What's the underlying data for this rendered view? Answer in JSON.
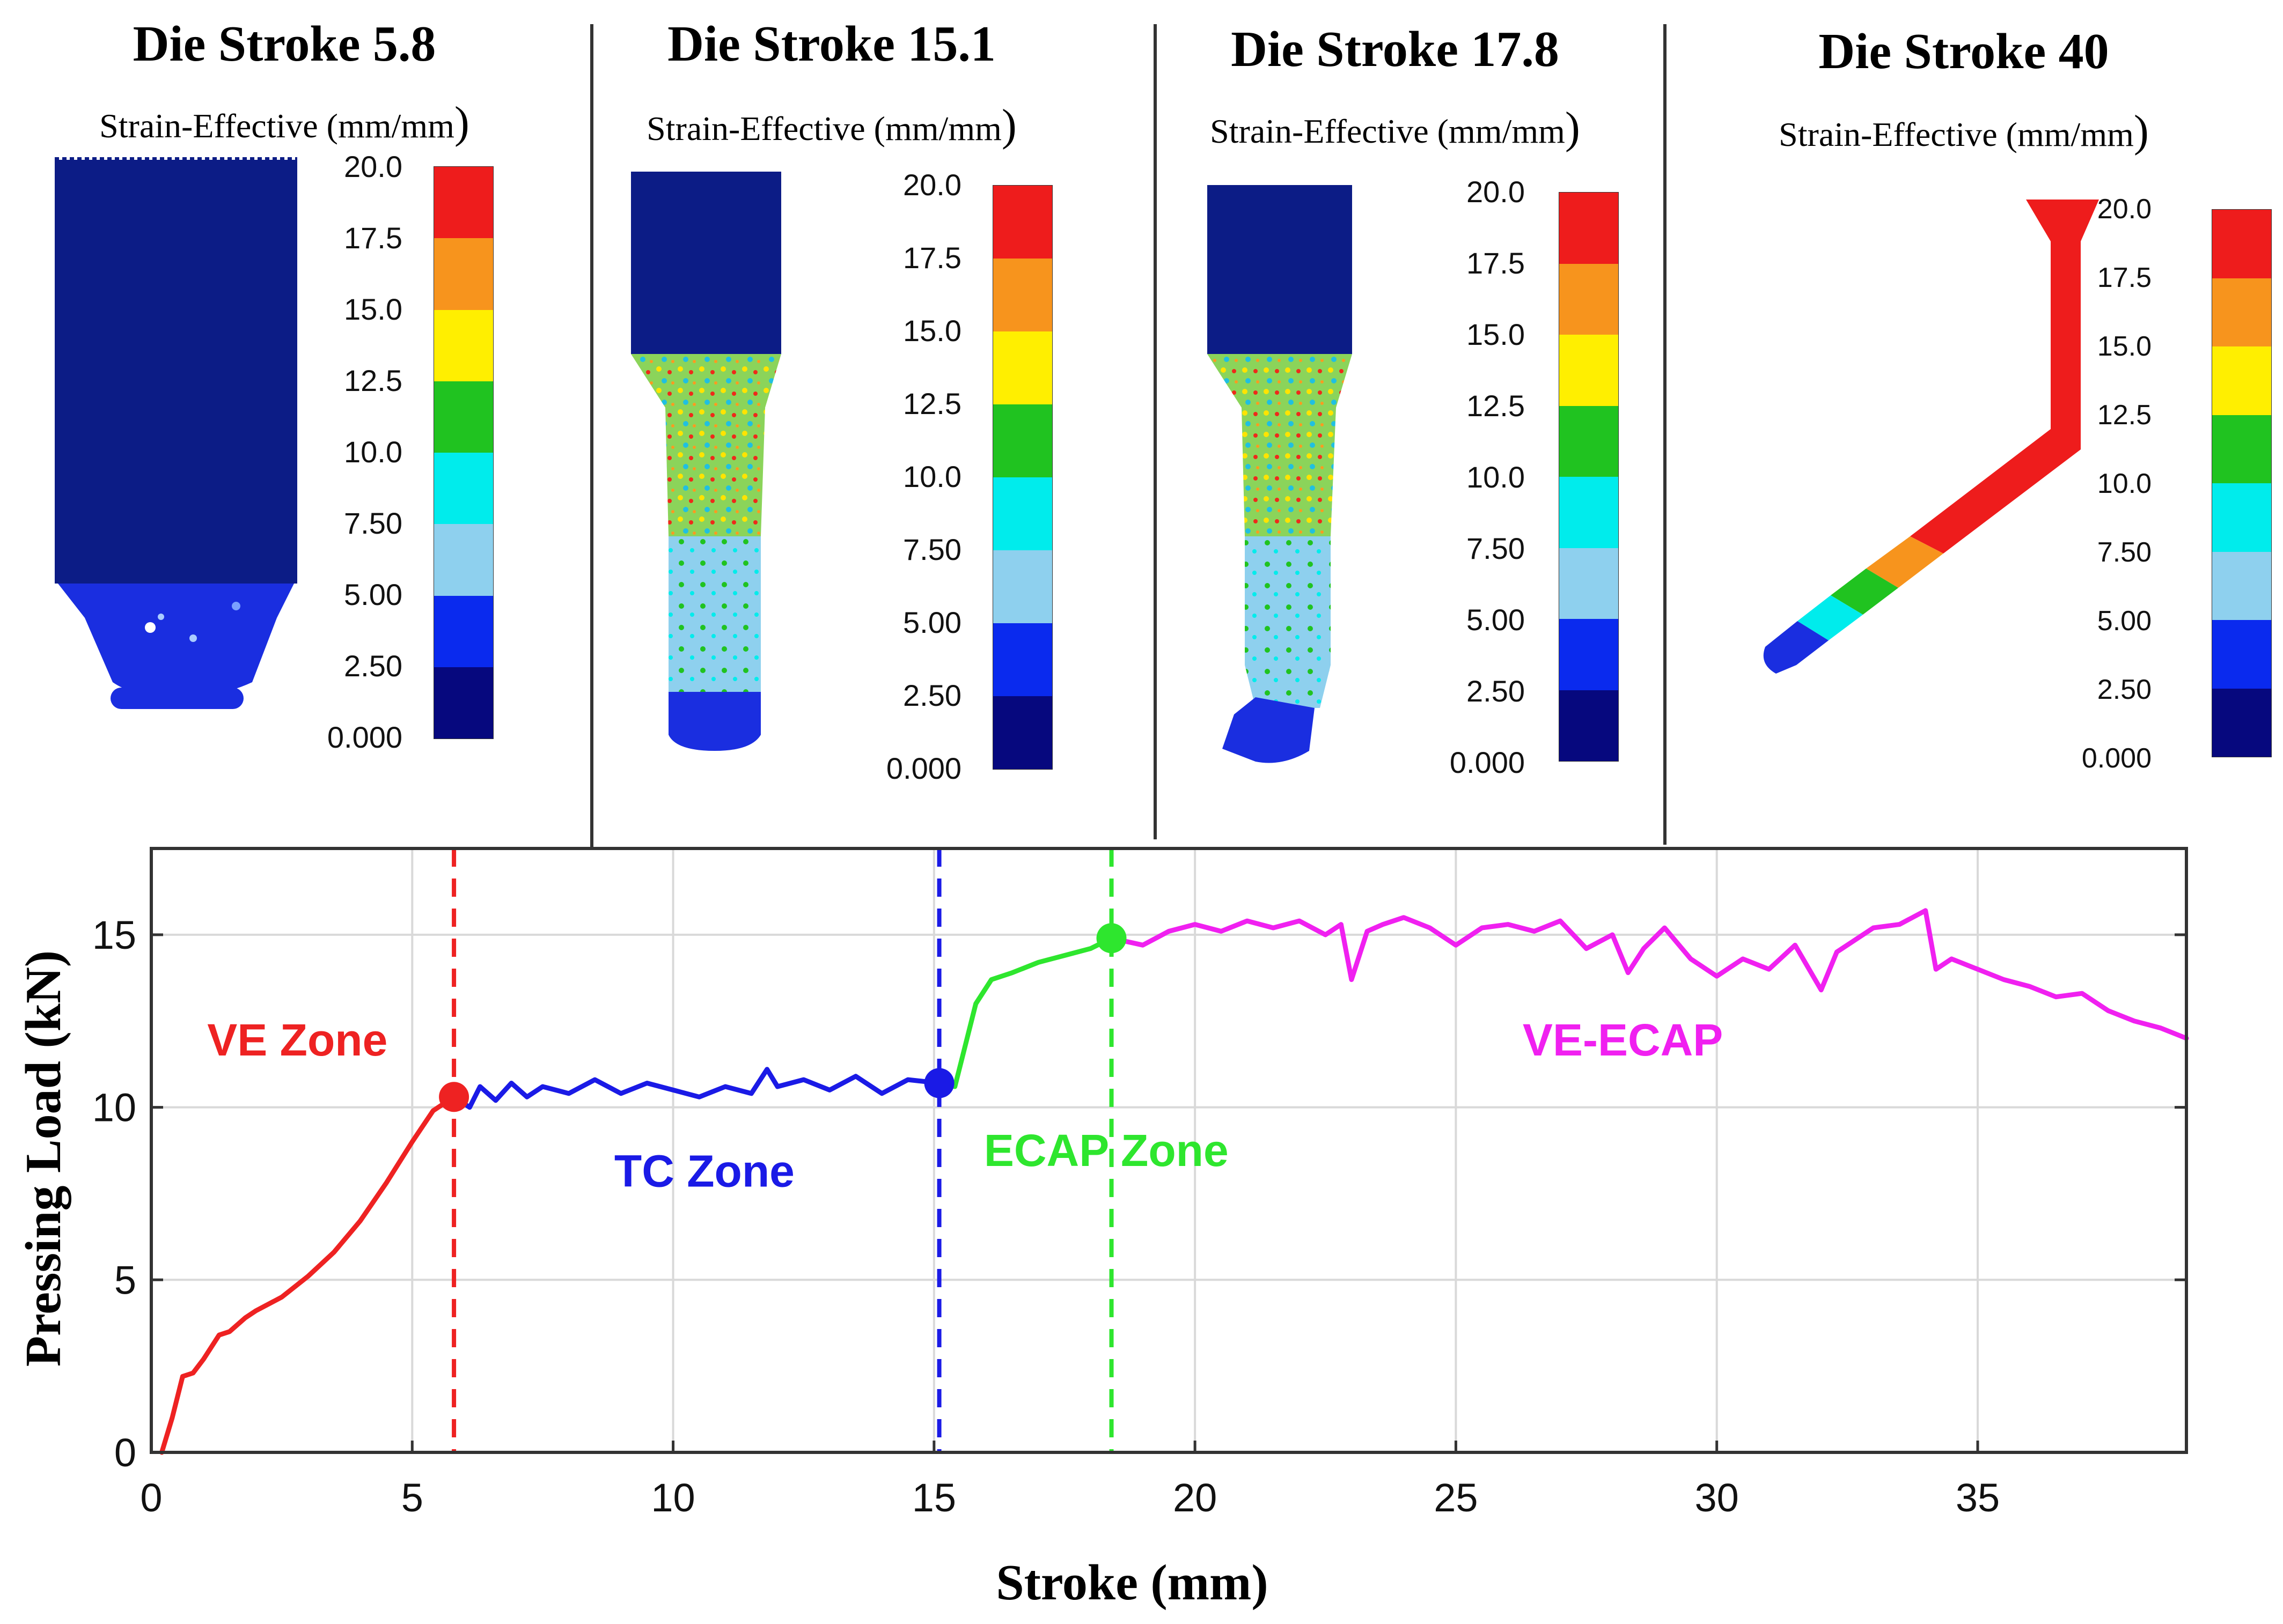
{
  "panels": [
    {
      "title": "Die Stroke 5.8",
      "subtitle": "Strain-Effective (mm/mm",
      "subtitle_paren": ")"
    },
    {
      "title": "Die Stroke 15.1",
      "subtitle": "Strain-Effective (mm/mm",
      "subtitle_paren": ")"
    },
    {
      "title": "Die Stroke 17.8",
      "subtitle": "Strain-Effective (mm/mm",
      "subtitle_paren": ")"
    },
    {
      "title": "Die Stroke 40",
      "subtitle": "Strain-Effective (mm/mm",
      "subtitle_paren": ")"
    }
  ],
  "colorbar": {
    "ticks": [
      "20.0",
      "17.5",
      "15.0",
      "12.5",
      "10.0",
      "7.50",
      "5.00",
      "2.50",
      "0.000"
    ],
    "colors": [
      "#ee1c1c",
      "#f7941d",
      "#ffef00",
      "#20c320",
      "#00ecec",
      "#8ed0ee",
      "#0a2aee",
      "#06087e"
    ]
  },
  "colors": {
    "ve": "#ee2222",
    "tc": "#1a1ae6",
    "ecap": "#2ee62e",
    "ve_ecap": "#f020f0",
    "billet": "#0c1c86"
  },
  "chart_data": {
    "type": "line",
    "xlabel": "Stroke (mm)",
    "ylabel": "Pressing Load (kN)",
    "xlim": [
      0,
      39
    ],
    "ylim": [
      0,
      17.5
    ],
    "xticks": [
      0,
      5,
      10,
      15,
      20,
      25,
      30,
      35
    ],
    "yticks": [
      0,
      5,
      10,
      15
    ],
    "grid": true,
    "vlines": [
      {
        "x": 5.8,
        "color": "#ee2222"
      },
      {
        "x": 15.1,
        "color": "#1a1ae6"
      },
      {
        "x": 18.4,
        "color": "#2ee62e"
      }
    ],
    "markers": [
      {
        "x": 5.8,
        "y": 10.3,
        "color": "#ee2222"
      },
      {
        "x": 15.1,
        "y": 10.7,
        "color": "#1a1ae6"
      },
      {
        "x": 18.4,
        "y": 14.9,
        "color": "#2ee62e"
      }
    ],
    "annotations": [
      {
        "text": "VE Zone",
        "x": 2.8,
        "y": 11.5,
        "color": "#ee2222"
      },
      {
        "text": "TC Zone",
        "x": 10.6,
        "y": 7.7,
        "color": "#1a1ae6"
      },
      {
        "text": "ECAP Zone",
        "x": 18.3,
        "y": 8.3,
        "color": "#2ee62e"
      },
      {
        "text": "VE-ECAP",
        "x": 28.2,
        "y": 11.5,
        "color": "#f020f0"
      }
    ],
    "series": [
      {
        "name": "VE Zone",
        "color": "#ee2222",
        "x": [
          0.2,
          0.4,
          0.6,
          0.8,
          1.0,
          1.3,
          1.5,
          1.8,
          2.0,
          2.5,
          3.0,
          3.5,
          4.0,
          4.5,
          5.0,
          5.4,
          5.8
        ],
        "y": [
          0,
          1.0,
          2.2,
          2.3,
          2.7,
          3.4,
          3.5,
          3.9,
          4.1,
          4.5,
          5.1,
          5.8,
          6.7,
          7.8,
          9.0,
          9.9,
          10.3
        ]
      },
      {
        "name": "TC Zone",
        "color": "#1a1ae6",
        "x": [
          5.8,
          6.1,
          6.3,
          6.6,
          6.9,
          7.2,
          7.5,
          8.0,
          8.5,
          9.0,
          9.5,
          10.0,
          10.5,
          11.0,
          11.5,
          11.8,
          12.0,
          12.5,
          13.0,
          13.5,
          14.0,
          14.5,
          15.1
        ],
        "y": [
          10.3,
          10.0,
          10.6,
          10.2,
          10.7,
          10.3,
          10.6,
          10.4,
          10.8,
          10.4,
          10.7,
          10.5,
          10.3,
          10.6,
          10.4,
          11.1,
          10.6,
          10.8,
          10.5,
          10.9,
          10.4,
          10.8,
          10.7
        ]
      },
      {
        "name": "ECAP Zone",
        "color": "#2ee62e",
        "x": [
          15.1,
          15.4,
          15.6,
          15.8,
          16.1,
          16.5,
          17.0,
          17.5,
          18.0,
          18.4
        ],
        "y": [
          10.7,
          10.6,
          11.8,
          13.0,
          13.7,
          13.9,
          14.2,
          14.4,
          14.6,
          14.9
        ]
      },
      {
        "name": "VE-ECAP",
        "color": "#f020f0",
        "x": [
          18.4,
          19.0,
          19.5,
          20.0,
          20.5,
          21.0,
          21.5,
          22.0,
          22.5,
          22.8,
          23.0,
          23.3,
          23.6,
          24.0,
          24.5,
          25.0,
          25.5,
          26.0,
          26.5,
          27.0,
          27.5,
          28.0,
          28.3,
          28.6,
          29.0,
          29.5,
          30.0,
          30.5,
          31.0,
          31.5,
          32.0,
          32.3,
          32.6,
          33.0,
          33.5,
          34.0,
          34.2,
          34.5,
          35.0,
          35.5,
          36.0,
          36.5,
          37.0,
          37.5,
          38.0,
          38.5,
          39.0
        ],
        "y": [
          14.9,
          14.7,
          15.1,
          15.3,
          15.1,
          15.4,
          15.2,
          15.4,
          15.0,
          15.3,
          13.7,
          15.1,
          15.3,
          15.5,
          15.2,
          14.7,
          15.2,
          15.3,
          15.1,
          15.4,
          14.6,
          15.0,
          13.9,
          14.6,
          15.2,
          14.3,
          13.8,
          14.3,
          14.0,
          14.7,
          13.4,
          14.5,
          14.8,
          15.2,
          15.3,
          15.7,
          14.0,
          14.3,
          14.0,
          13.7,
          13.5,
          13.2,
          13.3,
          12.8,
          12.5,
          12.3,
          12.0
        ]
      }
    ]
  }
}
